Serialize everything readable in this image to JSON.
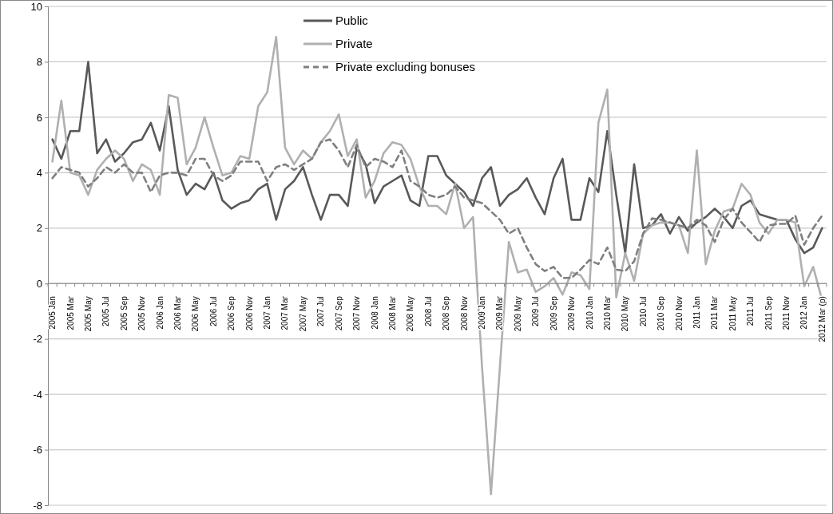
{
  "chart_data": {
    "type": "line",
    "categories": [
      "2005 Jan",
      null,
      "2005 Mar",
      null,
      "2005 May",
      null,
      "2005 Jul",
      null,
      "2005 Sep",
      null,
      "2005 Nov",
      null,
      "2006 Jan",
      null,
      "2006 Mar",
      null,
      "2006 May",
      null,
      "2006 Jul",
      null,
      "2006 Sep",
      null,
      "2006 Nov",
      null,
      "2007 Jan",
      null,
      "2007 Mar",
      null,
      "2007 May",
      null,
      "2007 Jul",
      null,
      "2007 Sep",
      null,
      "2007 Nov",
      null,
      "2008 Jan",
      null,
      "2008 Mar",
      null,
      "2008 May",
      null,
      "2008 Jul",
      null,
      "2008 Sep",
      null,
      "2008 Nov",
      null,
      "2009 Jan",
      null,
      "2009 Mar",
      null,
      "2009 May",
      null,
      "2009 Jul",
      null,
      "2009 Sep",
      null,
      "2009 Nov",
      null,
      "2010 Jan",
      null,
      "2010 Mar",
      null,
      "2010 May",
      null,
      "2010 Jul",
      null,
      "2010 Sep",
      null,
      "2010 Nov",
      null,
      "2011 Jan",
      null,
      "2011 Mar",
      null,
      "2011 May",
      null,
      "2011 Jul",
      null,
      "2011 Sep",
      null,
      "2011 Nov",
      null,
      "2012 Jan",
      null,
      "2012 Mar (p)"
    ],
    "series": [
      {
        "name": "Public",
        "color": "#595959",
        "line_style": "solid",
        "values": [
          5.2,
          4.5,
          5.5,
          5.5,
          8.0,
          4.7,
          5.2,
          4.4,
          4.7,
          5.1,
          5.2,
          5.8,
          4.8,
          6.4,
          4.1,
          3.2,
          3.6,
          3.4,
          4.0,
          3.0,
          2.7,
          2.9,
          3.0,
          3.4,
          3.6,
          2.3,
          3.4,
          3.7,
          4.2,
          3.2,
          2.3,
          3.2,
          3.2,
          2.8,
          4.9,
          4.3,
          2.9,
          3.5,
          3.7,
          3.9,
          3.0,
          2.8,
          4.6,
          4.6,
          3.9,
          3.6,
          3.3,
          2.8,
          3.8,
          4.2,
          2.8,
          3.2,
          3.4,
          3.8,
          3.1,
          2.5,
          3.8,
          4.5,
          2.3,
          2.3,
          3.8,
          3.3,
          5.5,
          3.2,
          1.1,
          4.3,
          2.0,
          2.1,
          2.5,
          1.8,
          2.4,
          1.9,
          2.2,
          2.4,
          2.7,
          2.4,
          2.0,
          2.8,
          3.0,
          2.5,
          2.4,
          2.3,
          2.3,
          1.6,
          1.1,
          1.3,
          2.0
        ]
      },
      {
        "name": "Private",
        "color": "#b0b0b0",
        "line_style": "solid",
        "values": [
          4.4,
          6.6,
          4.0,
          3.9,
          3.2,
          4.1,
          4.5,
          4.8,
          4.5,
          3.7,
          4.3,
          4.1,
          3.2,
          6.8,
          6.7,
          4.3,
          4.9,
          6.0,
          4.9,
          3.9,
          4.0,
          4.6,
          4.5,
          6.4,
          6.9,
          8.9,
          4.9,
          4.3,
          4.8,
          4.5,
          5.1,
          5.5,
          6.1,
          4.6,
          5.2,
          3.1,
          3.7,
          4.7,
          5.1,
          5.0,
          4.5,
          3.5,
          2.8,
          2.8,
          2.5,
          3.6,
          2.0,
          2.4,
          -3.0,
          -7.6,
          -3.0,
          1.5,
          0.4,
          0.5,
          -0.3,
          -0.1,
          0.2,
          -0.4,
          0.4,
          0.3,
          -0.2,
          5.8,
          7.0,
          -0.5,
          1.1,
          0.1,
          1.8,
          2.1,
          2.2,
          2.2,
          2.1,
          1.1,
          4.8,
          0.7,
          1.9,
          2.6,
          2.7,
          3.6,
          3.2,
          2.2,
          1.8,
          2.3,
          2.3,
          2.2,
          -0.1,
          0.6,
          -0.6
        ]
      },
      {
        "name": "Private excluding bonuses",
        "color": "#7f7f7f",
        "line_style": "dashed",
        "values": [
          3.8,
          4.2,
          4.1,
          4.0,
          3.5,
          3.8,
          4.2,
          4.0,
          4.3,
          4.0,
          4.0,
          3.3,
          3.9,
          4.0,
          4.0,
          3.9,
          4.5,
          4.5,
          3.9,
          3.7,
          3.9,
          4.4,
          4.4,
          4.4,
          3.7,
          4.2,
          4.3,
          4.1,
          4.3,
          4.5,
          5.1,
          5.2,
          4.8,
          4.2,
          5.0,
          4.2,
          4.5,
          4.4,
          4.2,
          4.8,
          3.7,
          3.5,
          3.2,
          3.1,
          3.2,
          3.5,
          3.1,
          3.0,
          2.9,
          2.6,
          2.3,
          1.8,
          2.0,
          1.3,
          0.7,
          0.45,
          0.6,
          0.2,
          0.2,
          0.5,
          0.85,
          0.7,
          1.3,
          0.5,
          0.45,
          0.8,
          1.8,
          2.35,
          2.3,
          2.2,
          2.1,
          2.0,
          2.3,
          2.1,
          1.5,
          2.3,
          2.7,
          2.2,
          1.85,
          1.5,
          2.1,
          2.15,
          2.15,
          2.45,
          1.4,
          2.0,
          2.45
        ]
      }
    ],
    "ylim": [
      -8,
      10
    ],
    "yticks": [
      -8,
      -6,
      -4,
      -2,
      0,
      2,
      4,
      6,
      8,
      10
    ],
    "grid": "y",
    "legend": "top"
  }
}
